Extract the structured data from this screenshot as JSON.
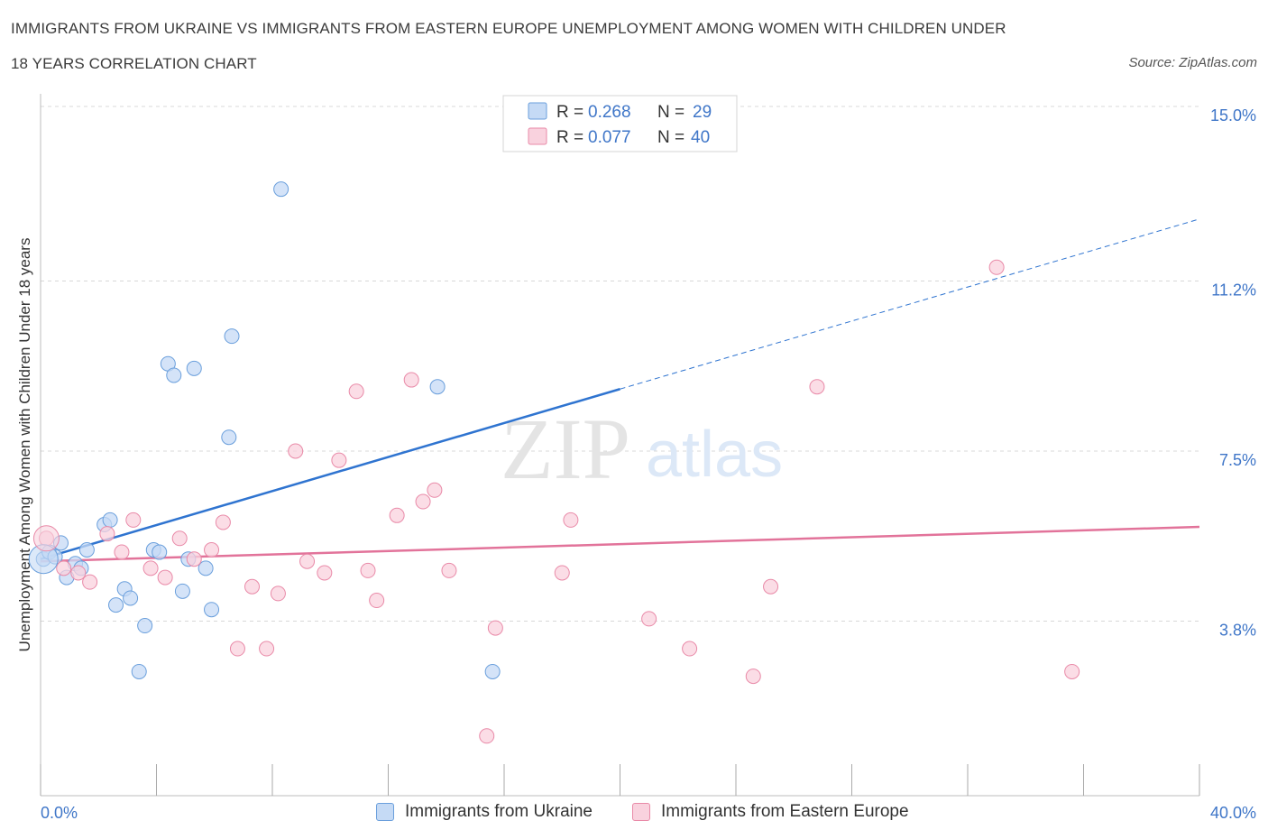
{
  "title_line1": "IMMIGRANTS FROM UKRAINE VS IMMIGRANTS FROM EASTERN EUROPE UNEMPLOYMENT AMONG WOMEN WITH CHILDREN UNDER",
  "title_line2": "18 YEARS CORRELATION CHART",
  "source": "Source: ZipAtlas.com",
  "colors": {
    "blue": "#6a9fdc",
    "blue_fill": "#c5daf5",
    "blue_line": "#2f74d0",
    "pink": "#e98aa8",
    "pink_fill": "#f9d2de",
    "pink_line": "#e2739a",
    "axis_text": "#3f76c8",
    "grid": "#d8d8d8"
  },
  "legend_top": {
    "rows": [
      {
        "r_label": "R =",
        "r_value": "0.268",
        "n_label": "N =",
        "n_value": "29"
      },
      {
        "r_label": "R =",
        "r_value": "0.077",
        "n_label": "N =",
        "n_value": "40"
      }
    ]
  },
  "watermark": {
    "zip": "ZIP",
    "atlas": "atlas"
  },
  "chart_data": {
    "type": "scatter",
    "xlabel": "",
    "ylabel": "Unemployment Among Women with Children Under 18 years",
    "xlim": [
      0,
      40
    ],
    "ylim": [
      0,
      15
    ],
    "x_tick_labels": [
      "0.0%",
      "40.0%"
    ],
    "y_ticks": [
      3.8,
      7.5,
      11.2,
      15.0
    ],
    "y_tick_labels": [
      "3.8%",
      "7.5%",
      "11.2%",
      "15.0%"
    ],
    "grid": true,
    "legend_placement": "top-center",
    "series": [
      {
        "name": "Immigrants from Ukraine",
        "color": "blue",
        "points": [
          [
            0.1,
            5.15
          ],
          [
            0.3,
            5.3
          ],
          [
            0.5,
            5.2
          ],
          [
            0.7,
            5.5
          ],
          [
            0.9,
            4.75
          ],
          [
            1.2,
            5.05
          ],
          [
            1.6,
            5.35
          ],
          [
            1.4,
            4.95
          ],
          [
            2.2,
            5.9
          ],
          [
            2.4,
            6.0
          ],
          [
            2.6,
            4.15
          ],
          [
            2.9,
            4.5
          ],
          [
            3.1,
            4.3
          ],
          [
            3.4,
            2.7
          ],
          [
            3.6,
            3.7
          ],
          [
            3.9,
            5.35
          ],
          [
            4.1,
            5.3
          ],
          [
            4.4,
            9.4
          ],
          [
            4.6,
            9.15
          ],
          [
            4.9,
            4.45
          ],
          [
            5.1,
            5.15
          ],
          [
            5.3,
            9.3
          ],
          [
            5.7,
            4.95
          ],
          [
            5.9,
            4.05
          ],
          [
            6.5,
            7.8
          ],
          [
            6.6,
            10.0
          ],
          [
            8.3,
            13.2
          ],
          [
            13.7,
            8.9
          ],
          [
            15.6,
            2.7
          ]
        ],
        "trend": {
          "x": [
            0,
            20
          ],
          "y": [
            5.15,
            8.85
          ],
          "dashed_extension": {
            "x": [
              20,
              40
            ],
            "y": [
              8.85,
              12.55
            ]
          }
        }
      },
      {
        "name": "Immigrants from Eastern Europe",
        "color": "pink",
        "points": [
          [
            0.2,
            5.6
          ],
          [
            0.8,
            4.95
          ],
          [
            1.3,
            4.85
          ],
          [
            1.7,
            4.65
          ],
          [
            2.3,
            5.7
          ],
          [
            2.8,
            5.3
          ],
          [
            3.2,
            6.0
          ],
          [
            3.8,
            4.95
          ],
          [
            4.3,
            4.75
          ],
          [
            4.8,
            5.6
          ],
          [
            5.3,
            5.15
          ],
          [
            5.9,
            5.35
          ],
          [
            6.3,
            5.95
          ],
          [
            6.8,
            3.2
          ],
          [
            7.3,
            4.55
          ],
          [
            7.8,
            3.2
          ],
          [
            8.2,
            4.4
          ],
          [
            8.8,
            7.5
          ],
          [
            9.2,
            5.1
          ],
          [
            9.8,
            4.85
          ],
          [
            10.3,
            7.3
          ],
          [
            10.9,
            8.8
          ],
          [
            11.3,
            4.9
          ],
          [
            11.6,
            4.25
          ],
          [
            12.3,
            6.1
          ],
          [
            12.8,
            9.05
          ],
          [
            13.2,
            6.4
          ],
          [
            13.6,
            6.65
          ],
          [
            14.1,
            4.9
          ],
          [
            15.4,
            1.3
          ],
          [
            15.7,
            3.65
          ],
          [
            18.0,
            4.85
          ],
          [
            18.3,
            6.0
          ],
          [
            21.0,
            3.85
          ],
          [
            22.4,
            3.2
          ],
          [
            24.6,
            2.6
          ],
          [
            25.2,
            4.55
          ],
          [
            26.8,
            8.9
          ],
          [
            33.0,
            11.5
          ],
          [
            35.6,
            2.7
          ]
        ],
        "trend": {
          "x": [
            0,
            40
          ],
          "y": [
            5.1,
            5.85
          ]
        }
      }
    ]
  },
  "legend_bottom": [
    {
      "label": "Immigrants from Ukraine"
    },
    {
      "label": "Immigrants from Eastern Europe"
    }
  ]
}
